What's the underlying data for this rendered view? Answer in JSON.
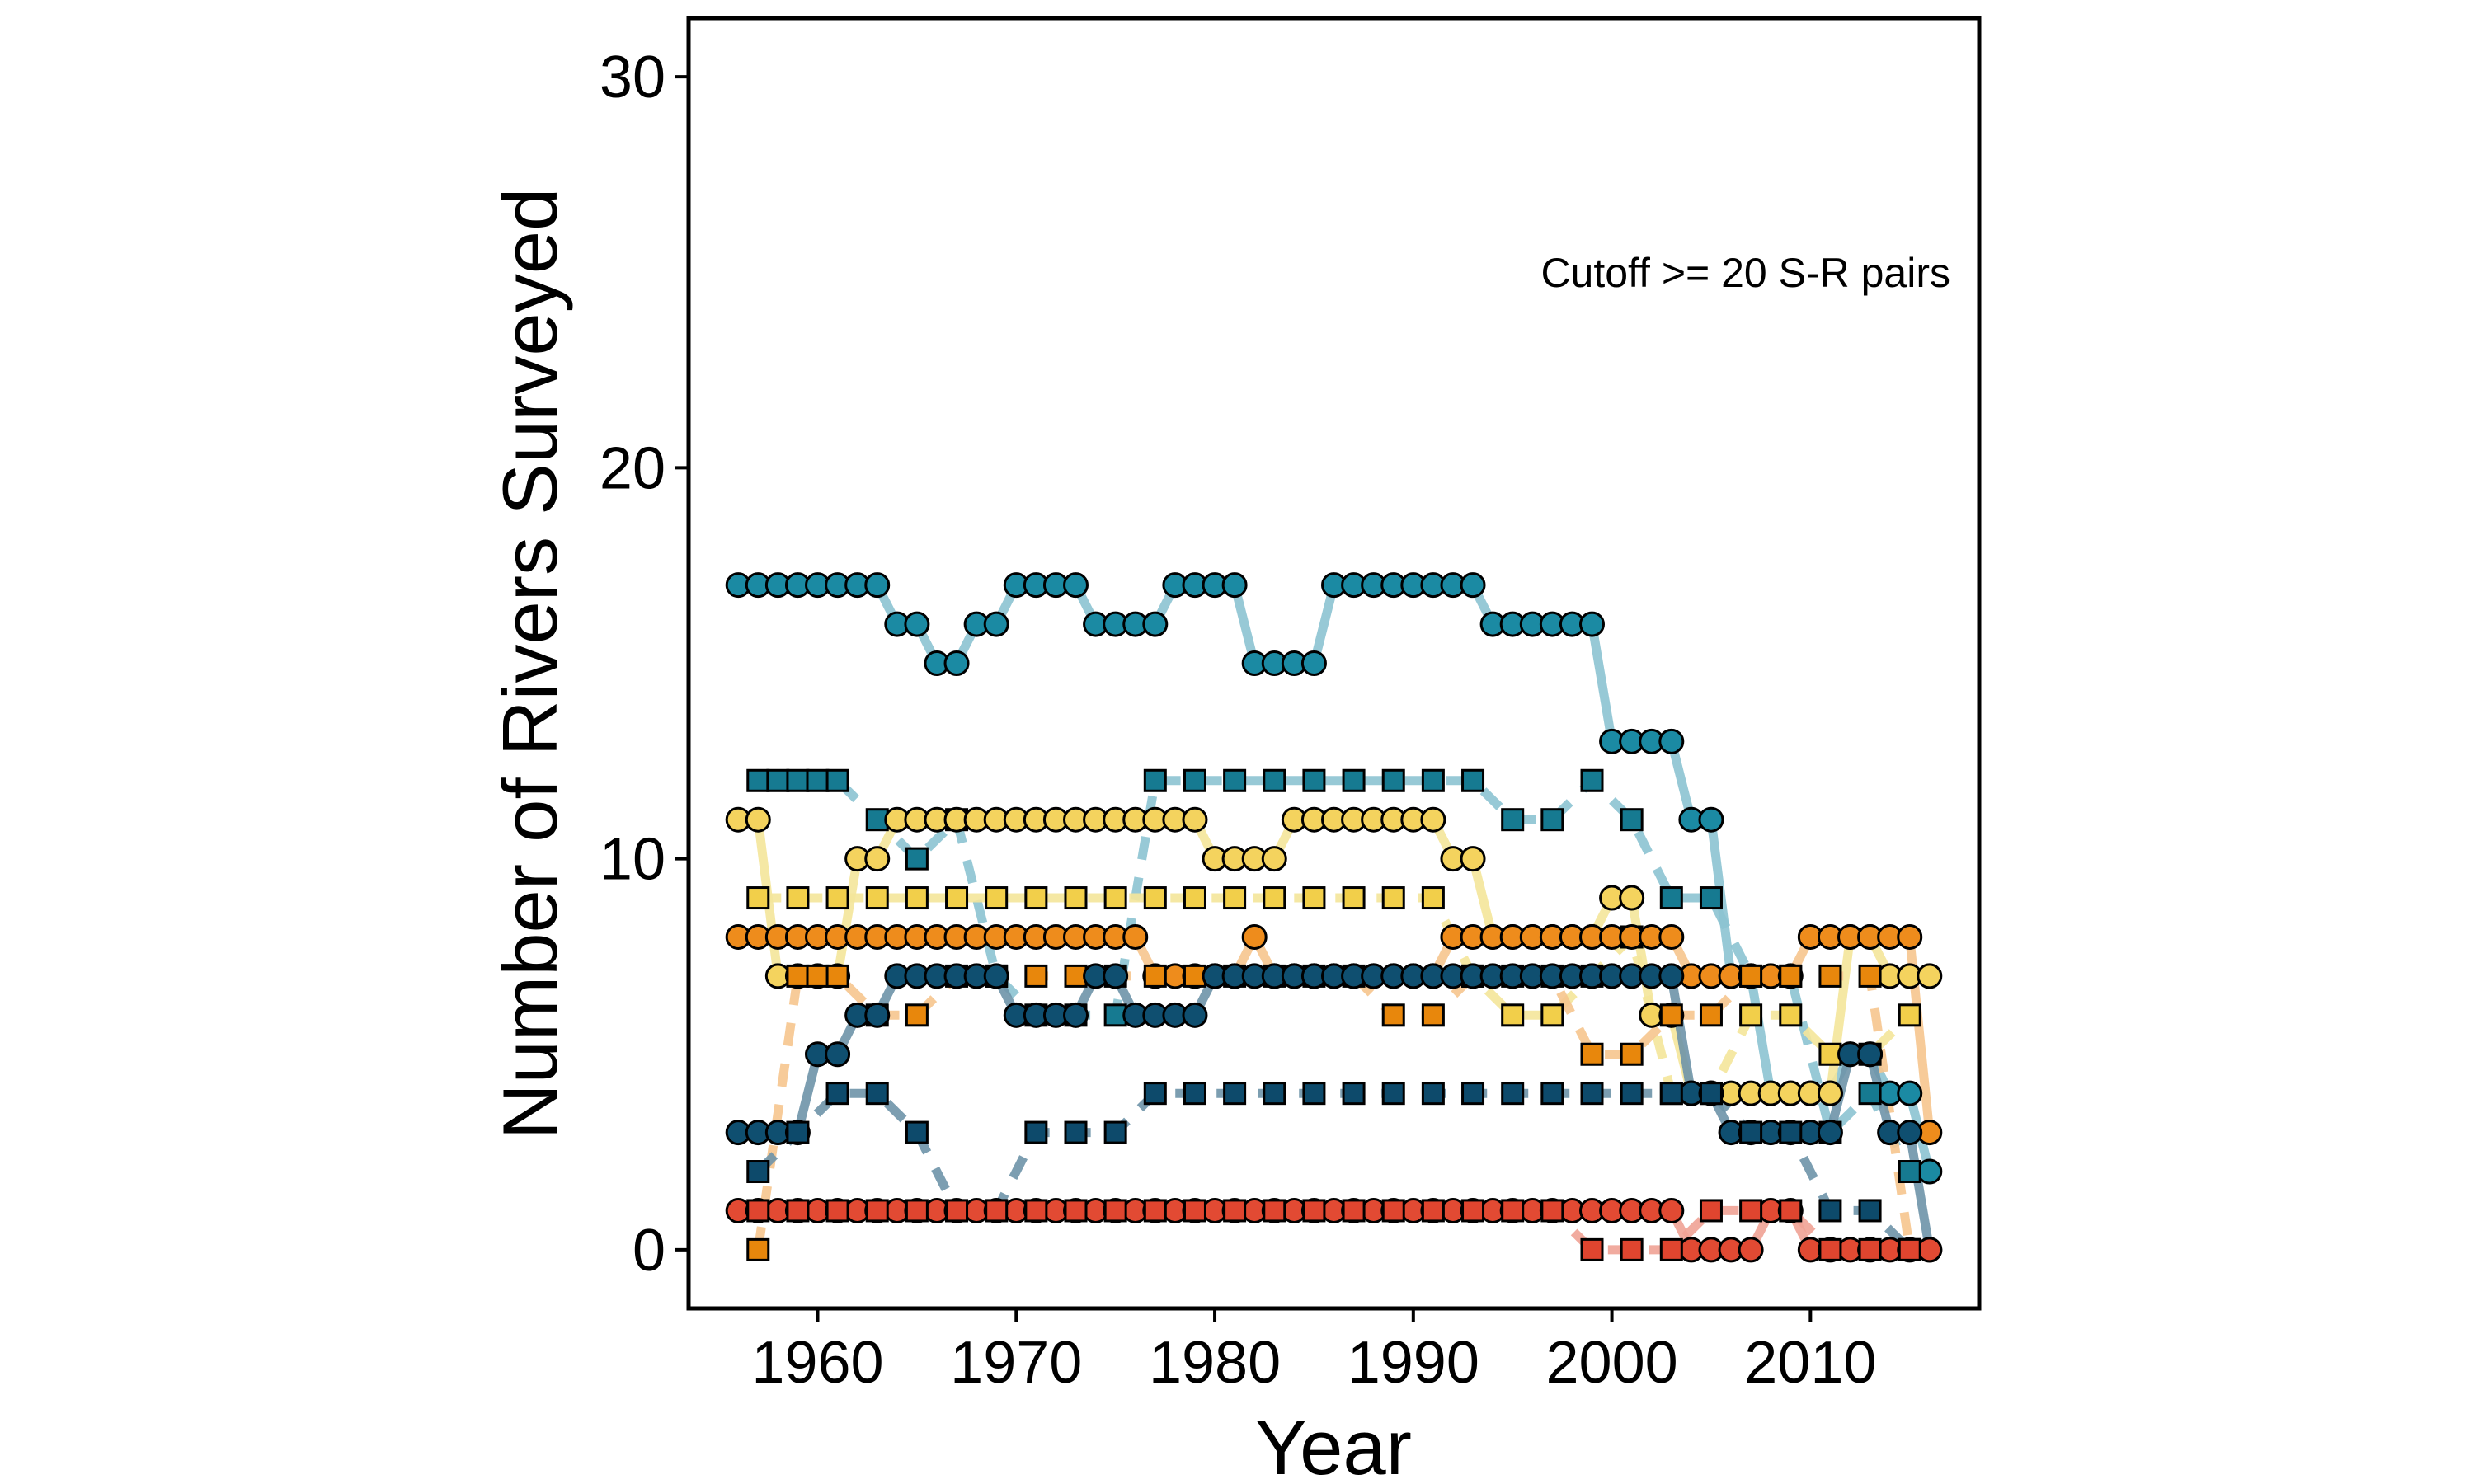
{
  "chart_data": {
    "type": "line",
    "title": "",
    "xlabel": "Year",
    "ylabel": "Number of Rivers Surveyed",
    "annotation": "Cutoff >= 20 S-R pairs",
    "xlim": [
      1953.5,
      2018.5
    ],
    "ylim": [
      -1.5,
      31.5
    ],
    "xticks": [
      1960,
      1970,
      1980,
      1990,
      2000,
      2010
    ],
    "yticks": [
      0,
      10,
      20,
      30
    ],
    "grid": false,
    "legend": "none",
    "series": [
      {
        "color": "#1b8aa3",
        "line": "#8cc3d1",
        "marker": "circle",
        "dash": "solid",
        "x": [
          1956,
          1957,
          1958,
          1959,
          1960,
          1961,
          1962,
          1963,
          1964,
          1965,
          1966,
          1967,
          1968,
          1969,
          1970,
          1971,
          1972,
          1973,
          1974,
          1975,
          1976,
          1977,
          1978,
          1979,
          1980,
          1981,
          1982,
          1983,
          1984,
          1985,
          1986,
          1987,
          1988,
          1989,
          1990,
          1991,
          1992,
          1993,
          1994,
          1995,
          1996,
          1997,
          1998,
          1999,
          2000,
          2001,
          2002,
          2003,
          2004,
          2005,
          2006,
          2007,
          2008,
          2009,
          2010,
          2011,
          2012,
          2013,
          2014,
          2015,
          2016
        ],
        "y": [
          17,
          17,
          17,
          17,
          17,
          17,
          17,
          17,
          16,
          16,
          15,
          15,
          16,
          16,
          17,
          17,
          17,
          17,
          16,
          16,
          16,
          16,
          17,
          17,
          17,
          17,
          15,
          15,
          15,
          15,
          17,
          17,
          17,
          17,
          17,
          17,
          17,
          17,
          16,
          16,
          16,
          16,
          16,
          16,
          13,
          13,
          13,
          13,
          11,
          11,
          7,
          7,
          4,
          4,
          4,
          4,
          5,
          5,
          4,
          4,
          2
        ]
      },
      {
        "color": "#167a91",
        "line": "#8cc3d1",
        "marker": "square",
        "dash": "dashed",
        "x": [
          1957,
          1958,
          1959,
          1960,
          1961,
          1963,
          1965,
          1967,
          1969,
          1971,
          1973,
          1975,
          1977,
          1979,
          1981,
          1983,
          1985,
          1987,
          1989,
          1991,
          1993,
          1995,
          1997,
          1999,
          2001,
          2003,
          2005,
          2007,
          2009,
          2011,
          2013,
          2015
        ],
        "y": [
          12,
          12,
          12,
          12,
          12,
          11,
          10,
          11,
          7,
          6,
          6,
          6,
          12,
          12,
          12,
          12,
          12,
          12,
          12,
          12,
          12,
          11,
          11,
          12,
          11,
          9,
          9,
          7,
          7,
          3,
          4,
          2
        ]
      },
      {
        "color": "#f4d35e",
        "line": "#f4e59a",
        "marker": "circle",
        "dash": "solid",
        "x": [
          1956,
          1957,
          1958,
          1959,
          1960,
          1961,
          1962,
          1963,
          1964,
          1965,
          1966,
          1967,
          1968,
          1969,
          1970,
          1971,
          1972,
          1973,
          1974,
          1975,
          1976,
          1977,
          1978,
          1979,
          1980,
          1981,
          1982,
          1983,
          1984,
          1985,
          1986,
          1987,
          1988,
          1989,
          1990,
          1991,
          1992,
          1993,
          1994,
          1995,
          1996,
          1997,
          1998,
          1999,
          2000,
          2001,
          2002,
          2003,
          2004,
          2005,
          2006,
          2007,
          2008,
          2009,
          2010,
          2011,
          2012,
          2013,
          2014,
          2015,
          2016
        ],
        "y": [
          11,
          11,
          7,
          7,
          7,
          7,
          10,
          10,
          11,
          11,
          11,
          11,
          11,
          11,
          11,
          11,
          11,
          11,
          11,
          11,
          11,
          11,
          11,
          11,
          10,
          10,
          10,
          10,
          11,
          11,
          11,
          11,
          11,
          11,
          11,
          11,
          10,
          10,
          8,
          8,
          8,
          8,
          8,
          8,
          9,
          9,
          6,
          6,
          4,
          4,
          4,
          4,
          4,
          4,
          4,
          4,
          8,
          8,
          7,
          7,
          7
        ]
      },
      {
        "color": "#f2cf4a",
        "line": "#f4e59a",
        "marker": "square",
        "dash": "dashed",
        "x": [
          1957,
          1959,
          1961,
          1963,
          1965,
          1967,
          1969,
          1971,
          1973,
          1975,
          1977,
          1979,
          1981,
          1983,
          1985,
          1987,
          1989,
          1991,
          1993,
          1995,
          1997,
          1999,
          2001,
          2003,
          2005,
          2007,
          2009,
          2011,
          2013,
          2015
        ],
        "y": [
          9,
          9,
          9,
          9,
          9,
          9,
          9,
          9,
          9,
          9,
          9,
          9,
          9,
          9,
          9,
          9,
          9,
          9,
          7,
          6,
          6,
          7,
          8,
          4,
          4,
          6,
          6,
          5,
          5,
          6
        ]
      },
      {
        "color": "#ee8c1c",
        "line": "#f6c58e",
        "marker": "circle",
        "dash": "solid",
        "x": [
          1956,
          1957,
          1958,
          1959,
          1960,
          1961,
          1962,
          1963,
          1964,
          1965,
          1966,
          1967,
          1968,
          1969,
          1970,
          1971,
          1972,
          1973,
          1974,
          1975,
          1976,
          1977,
          1978,
          1979,
          1980,
          1981,
          1982,
          1983,
          1984,
          1985,
          1986,
          1987,
          1988,
          1989,
          1990,
          1991,
          1992,
          1993,
          1994,
          1995,
          1996,
          1997,
          1998,
          1999,
          2000,
          2001,
          2002,
          2003,
          2004,
          2005,
          2006,
          2007,
          2008,
          2009,
          2010,
          2011,
          2012,
          2013,
          2014,
          2015,
          2016
        ],
        "y": [
          8,
          8,
          8,
          8,
          8,
          8,
          8,
          8,
          8,
          8,
          8,
          8,
          8,
          8,
          8,
          8,
          8,
          8,
          8,
          8,
          8,
          7,
          7,
          7,
          7,
          7,
          8,
          7,
          7,
          7,
          7,
          7,
          7,
          7,
          7,
          7,
          8,
          8,
          8,
          8,
          8,
          8,
          8,
          8,
          8,
          8,
          8,
          8,
          7,
          7,
          7,
          7,
          7,
          7,
          8,
          8,
          8,
          8,
          8,
          8,
          3
        ]
      },
      {
        "color": "#e8870c",
        "line": "#f6c58e",
        "marker": "square",
        "dash": "dashed",
        "x": [
          1957,
          1959,
          1960,
          1961,
          1963,
          1965,
          1967,
          1969,
          1971,
          1973,
          1975,
          1977,
          1979,
          1981,
          1983,
          1985,
          1987,
          1989,
          1991,
          1993,
          1995,
          1997,
          1999,
          2001,
          2003,
          2005,
          2007,
          2009,
          2011,
          2013,
          2015
        ],
        "y": [
          0,
          7,
          7,
          7,
          6,
          6,
          7,
          7,
          7,
          7,
          7,
          7,
          7,
          7,
          7,
          7,
          7,
          6,
          6,
          7,
          7,
          7,
          5,
          5,
          6,
          6,
          7,
          7,
          7,
          7,
          0
        ]
      },
      {
        "color": "#0f4f70",
        "line": "#6e93a8",
        "marker": "circle",
        "dash": "solid",
        "x": [
          1956,
          1957,
          1958,
          1959,
          1960,
          1961,
          1962,
          1963,
          1964,
          1965,
          1966,
          1967,
          1968,
          1969,
          1970,
          1971,
          1972,
          1973,
          1974,
          1975,
          1976,
          1977,
          1978,
          1979,
          1980,
          1981,
          1982,
          1983,
          1984,
          1985,
          1986,
          1987,
          1988,
          1989,
          1990,
          1991,
          1992,
          1993,
          1994,
          1995,
          1996,
          1997,
          1998,
          1999,
          2000,
          2001,
          2002,
          2003,
          2004,
          2005,
          2006,
          2007,
          2008,
          2009,
          2010,
          2011,
          2012,
          2013,
          2014,
          2015,
          2016
        ],
        "y": [
          3,
          3,
          3,
          3,
          5,
          5,
          6,
          6,
          7,
          7,
          7,
          7,
          7,
          7,
          6,
          6,
          6,
          6,
          7,
          7,
          6,
          6,
          6,
          6,
          7,
          7,
          7,
          7,
          7,
          7,
          7,
          7,
          7,
          7,
          7,
          7,
          7,
          7,
          7,
          7,
          7,
          7,
          7,
          7,
          7,
          7,
          7,
          7,
          4,
          4,
          3,
          3,
          3,
          3,
          3,
          3,
          5,
          5,
          3,
          3,
          0
        ]
      },
      {
        "color": "#0d4a6b",
        "line": "#6e93a8",
        "marker": "square",
        "dash": "dashed",
        "x": [
          1957,
          1959,
          1961,
          1963,
          1965,
          1967,
          1969,
          1971,
          1973,
          1975,
          1977,
          1979,
          1981,
          1983,
          1985,
          1987,
          1989,
          1991,
          1993,
          1995,
          1997,
          1999,
          2001,
          2003,
          2005,
          2007,
          2009,
          2011,
          2013,
          2015
        ],
        "y": [
          2,
          3,
          4,
          4,
          3,
          1,
          1,
          3,
          3,
          3,
          4,
          4,
          4,
          4,
          4,
          4,
          4,
          4,
          4,
          4,
          4,
          4,
          4,
          4,
          4,
          3,
          3,
          1,
          1,
          0
        ]
      },
      {
        "color": "#e24a33",
        "line": "#f0a295",
        "marker": "circle",
        "dash": "solid",
        "x": [
          1956,
          1957,
          1958,
          1959,
          1960,
          1961,
          1962,
          1963,
          1964,
          1965,
          1966,
          1967,
          1968,
          1969,
          1970,
          1971,
          1972,
          1973,
          1974,
          1975,
          1976,
          1977,
          1978,
          1979,
          1980,
          1981,
          1982,
          1983,
          1984,
          1985,
          1986,
          1987,
          1988,
          1989,
          1990,
          1991,
          1992,
          1993,
          1994,
          1995,
          1996,
          1997,
          1998,
          1999,
          2000,
          2001,
          2002,
          2003,
          2004,
          2005,
          2006,
          2007,
          2008,
          2009,
          2010,
          2011,
          2012,
          2013,
          2014,
          2015,
          2016
        ],
        "y": [
          1,
          1,
          1,
          1,
          1,
          1,
          1,
          1,
          1,
          1,
          1,
          1,
          1,
          1,
          1,
          1,
          1,
          1,
          1,
          1,
          1,
          1,
          1,
          1,
          1,
          1,
          1,
          1,
          1,
          1,
          1,
          1,
          1,
          1,
          1,
          1,
          1,
          1,
          1,
          1,
          1,
          1,
          1,
          1,
          1,
          1,
          1,
          1,
          0,
          0,
          0,
          0,
          1,
          1,
          0,
          0,
          0,
          0,
          0,
          0,
          0
        ]
      },
      {
        "color": "#e0452f",
        "line": "#f0a295",
        "marker": "square",
        "dash": "dashed",
        "x": [
          1957,
          1959,
          1961,
          1963,
          1965,
          1967,
          1969,
          1971,
          1973,
          1975,
          1977,
          1979,
          1981,
          1983,
          1985,
          1987,
          1989,
          1991,
          1993,
          1995,
          1997,
          1999,
          2001,
          2003,
          2005,
          2007,
          2009,
          2011,
          2013,
          2015
        ],
        "y": [
          1,
          1,
          1,
          1,
          1,
          1,
          1,
          1,
          1,
          1,
          1,
          1,
          1,
          1,
          1,
          1,
          1,
          1,
          1,
          1,
          1,
          0,
          0,
          0,
          1,
          1,
          1,
          0,
          0,
          0
        ]
      }
    ]
  }
}
